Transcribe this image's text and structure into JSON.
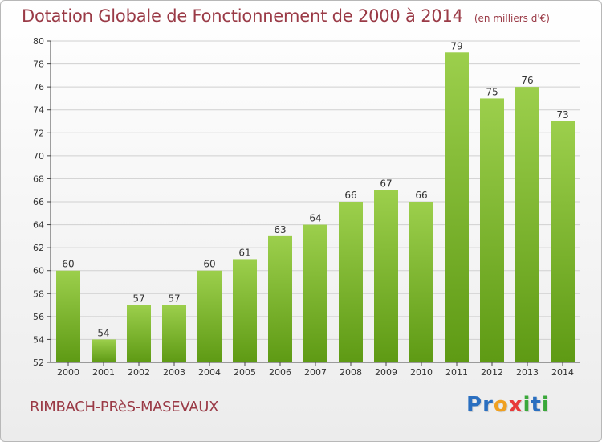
{
  "header": {
    "title": "Dotation Globale de Fonctionnement de 2000 à 2014",
    "unit": "(en milliers d'€)"
  },
  "footer": {
    "commune": "RIMBACH-PRèS-MASEVAUX",
    "logo": {
      "letters": [
        "P",
        "r",
        "o",
        "x",
        "i",
        "t",
        "i"
      ],
      "colors": [
        "#2a6fc0",
        "#2a6fc0",
        "#f0a020",
        "#e83a3a",
        "#3aa83a",
        "#2a6fc0",
        "#3aa83a"
      ]
    }
  },
  "chart_data": {
    "type": "bar",
    "categories": [
      "2000",
      "2001",
      "2002",
      "2003",
      "2004",
      "2005",
      "2006",
      "2007",
      "2008",
      "2009",
      "2010",
      "2011",
      "2012",
      "2013",
      "2014"
    ],
    "values": [
      60,
      54,
      57,
      57,
      60,
      61,
      63,
      64,
      66,
      67,
      66,
      79,
      75,
      76,
      73
    ],
    "data_labels": [
      "60",
      "54",
      "57",
      "57",
      "60",
      "61",
      "63",
      "64",
      "66",
      "67",
      "66",
      "79",
      "75",
      "76",
      "73"
    ],
    "yticks": [
      "52",
      "54",
      "56",
      "58",
      "60",
      "62",
      "64",
      "66",
      "68",
      "70",
      "72",
      "74",
      "76",
      "78",
      "80"
    ],
    "ylim": [
      52,
      80
    ],
    "grid": true,
    "colors": {
      "bar_top": "#9ccf4c",
      "bar_bottom": "#5e9a14",
      "grid": "#d0d0d0",
      "axis": "#444444"
    }
  }
}
